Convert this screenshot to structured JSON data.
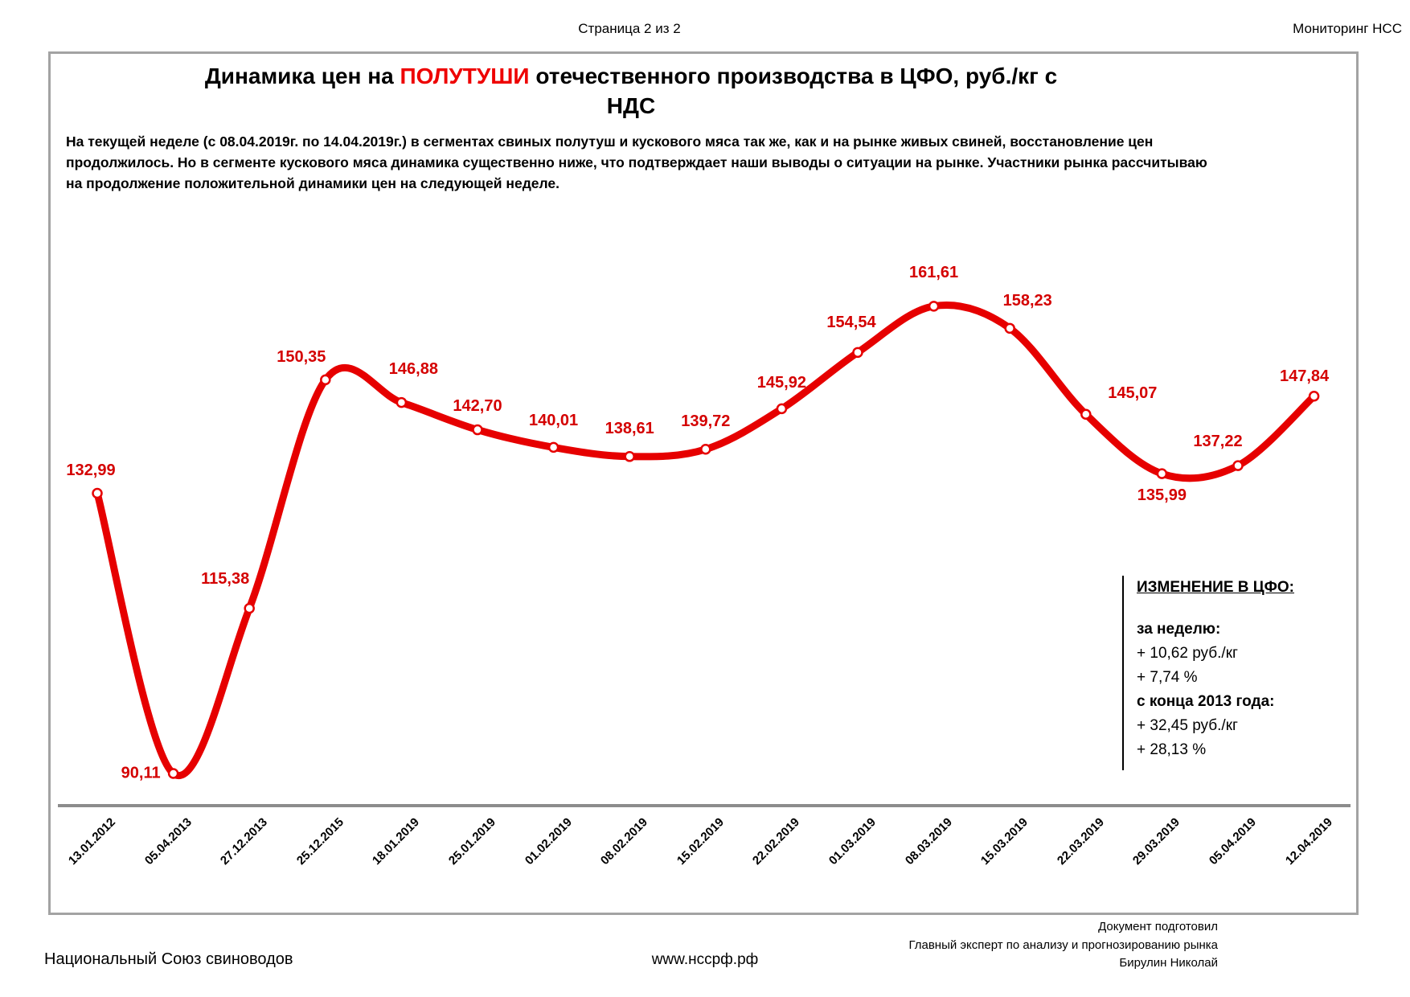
{
  "header": {
    "page_indicator": "Страница 2 из 2",
    "monitor_label": "Мониторинг НСС"
  },
  "title": {
    "prefix": "Динамика цен на ",
    "highlight": "ПОЛУТУШИ",
    "suffix": " отечественного производства в ЦФО, руб./кг с",
    "line2": "НДС"
  },
  "summary": "На текущей неделе (с 08.04.2019г. по 14.04.2019г.)  в сегментах свиных полутуш и кускового мяса так же, как и на рынке живых свиней, восстановление цен продолжилось. Но в сегменте кускового мяса динамика существенно ниже, что подтверждает наши выводы о ситуации на рынке. Участники рынка рассчитываю на продолжение положительной динамики цен на следующей неделе.",
  "chart_data": {
    "type": "line",
    "title": "Динамика цен на ПОЛУТУШИ отечественного производства в ЦФО, руб./кг с НДС",
    "categories": [
      "13.01.2012",
      "05.04.2013",
      "27.12.2013",
      "25.12.2015",
      "18.01.2019",
      "25.01.2019",
      "01.02.2019",
      "08.02.2019",
      "15.02.2019",
      "22.02.2019",
      "01.03.2019",
      "08.03.2019",
      "15.03.2019",
      "22.03.2019",
      "29.03.2019",
      "05.04.2019",
      "12.04.2019"
    ],
    "values": [
      132.99,
      90.11,
      115.38,
      150.35,
      146.88,
      142.7,
      140.01,
      138.61,
      139.72,
      145.92,
      154.54,
      161.61,
      158.23,
      145.07,
      135.99,
      137.22,
      147.84
    ],
    "point_labels": [
      "132,99",
      "90,11",
      "115,38",
      "150,35",
      "146,88",
      "142,70",
      "140,01",
      "138,61",
      "139,72",
      "145,92",
      "154,54",
      "161,61",
      "158,23",
      "145,07",
      "135,99",
      "137,22",
      "147,84"
    ],
    "xlabel": "",
    "ylabel": "руб./кг с НДС",
    "ylim": [
      85,
      170
    ],
    "grid": false,
    "legend": "none",
    "line_color": "#e60000",
    "marker_style": "open-circle"
  },
  "info_box": {
    "title": "ИЗМЕНЕНИЕ В ЦФО:",
    "rows": [
      {
        "text": "за неделю:",
        "bold": true
      },
      {
        "text": "+ 10,62 руб./кг",
        "bold": false
      },
      {
        "text": "+ 7,74 %",
        "bold": false
      },
      {
        "text": "с конца 2013 года:",
        "bold": true
      },
      {
        "text": "+ 32,45 руб./кг",
        "bold": false
      },
      {
        "text": "+ 28,13 %",
        "bold": false
      }
    ]
  },
  "footer": {
    "left": "Национальный Союз свиноводов",
    "center": "www.нссрф.рф",
    "right_lines": [
      "Документ подготовил",
      "Главный эксперт по анализу и прогнозированию рынка",
      "Бирулин Николай"
    ]
  },
  "colors": {
    "accent_red": "#e60000",
    "label_red": "#d40000",
    "frame_grey": "#a3a3a3",
    "axis_grey": "#8c8c8c"
  }
}
